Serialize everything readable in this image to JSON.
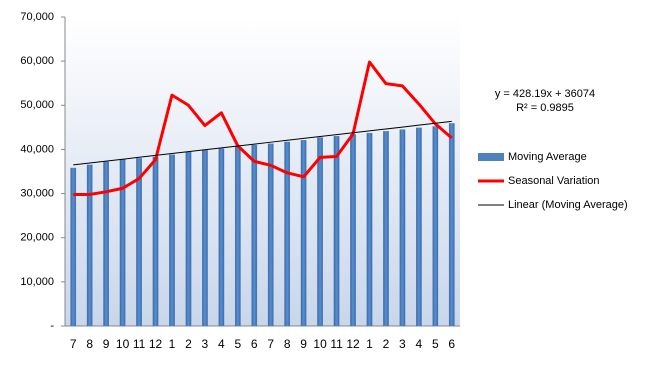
{
  "chart_data": {
    "type": "bar_line",
    "categories": [
      "7",
      "8",
      "9",
      "10",
      "11",
      "12",
      "1",
      "2",
      "3",
      "4",
      "5",
      "6",
      "7",
      "8",
      "9",
      "10",
      "11",
      "12",
      "1",
      "2",
      "3",
      "4",
      "5",
      "6"
    ],
    "series": [
      {
        "name": "Moving Average",
        "type": "bar",
        "color": "#4f81bd",
        "values": [
          35800,
          36500,
          37200,
          37700,
          38000,
          38300,
          38800,
          39400,
          39800,
          40200,
          40600,
          41000,
          41300,
          41700,
          42100,
          42700,
          43000,
          43400,
          43700,
          44100,
          44500,
          44900,
          45200,
          45900
        ]
      },
      {
        "name": "Seasonal Variation",
        "type": "line",
        "color": "#ff0000",
        "values": [
          29800,
          29800,
          30400,
          31200,
          33400,
          37700,
          52300,
          50000,
          45400,
          48300,
          40800,
          37300,
          36400,
          34700,
          33800,
          38200,
          38400,
          43500,
          59800,
          54900,
          54400,
          50300,
          45800,
          42600
        ]
      },
      {
        "name": "Linear (Moving Average)",
        "type": "line",
        "color": "#000000",
        "values": [
          36502,
          36930,
          37359,
          37787,
          38215,
          38643,
          39071,
          39500,
          39928,
          40356,
          40784,
          41212,
          41640,
          42069,
          42497,
          42925,
          43353,
          43781,
          44210,
          44638,
          45066,
          45494,
          45922,
          46351
        ]
      }
    ],
    "annotations": [
      "y = 428.19x + 36074",
      "R² = 0.9895"
    ],
    "ylim": [
      0,
      70000
    ],
    "yticks": [
      {
        "value": 0,
        "label": "-"
      },
      {
        "value": 10000,
        "label": "10,000"
      },
      {
        "value": 20000,
        "label": "20,000"
      },
      {
        "value": 30000,
        "label": "30,000"
      },
      {
        "value": 40000,
        "label": "40,000"
      },
      {
        "value": 50000,
        "label": "50,000"
      },
      {
        "value": 60000,
        "label": "60,000"
      },
      {
        "value": 70000,
        "label": "70,000"
      }
    ],
    "legend": "right"
  }
}
